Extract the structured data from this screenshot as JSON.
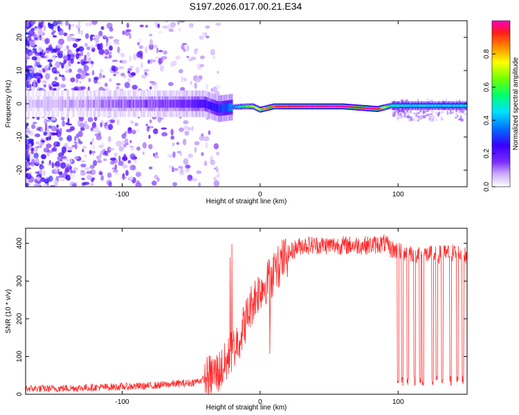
{
  "title": "S197.2026.017.00.21.E34",
  "chart_data": [
    {
      "type": "heatmap",
      "xlabel": "Height of straight line (km)",
      "ylabel": "Frequency (Hz)",
      "xlim": [
        -170,
        150
      ],
      "ylim": [
        -25,
        25
      ],
      "xticks": [
        -100,
        0,
        100
      ],
      "yticks": [
        -20,
        -10,
        0,
        10,
        20
      ],
      "colorbar": {
        "label": "Normalized spectral amplitude",
        "range": [
          0,
          1
        ],
        "ticks": [
          0.0,
          0.2,
          0.4,
          0.6,
          0.8
        ]
      },
      "band_profile": {
        "x": [
          -170,
          -130,
          -100,
          -60,
          -40,
          -30,
          -20,
          -10,
          -5,
          0,
          10,
          30,
          60,
          85,
          95,
          110,
          150
        ],
        "freq": [
          0,
          0,
          0,
          0,
          0,
          -1.5,
          -1,
          -0.8,
          -0.8,
          -1.8,
          -0.8,
          -0.8,
          -0.8,
          -1.6,
          -0.6,
          -0.6,
          -0.6
        ],
        "amplitude": [
          0.05,
          0.08,
          0.12,
          0.15,
          0.22,
          0.28,
          0.35,
          0.6,
          0.7,
          0.8,
          0.9,
          0.98,
          0.98,
          0.97,
          0.5,
          0.45,
          0.45
        ]
      }
    },
    {
      "type": "line",
      "xlabel": "Height of straight line (km)",
      "ylabel": "SNR (10 * v/v)",
      "xlim": [
        -170,
        150
      ],
      "ylim": [
        0,
        440
      ],
      "xticks": [
        -100,
        0,
        100
      ],
      "yticks": [
        0,
        100,
        200,
        300,
        400
      ],
      "color": "#ff2a2a",
      "series": [
        {
          "name": "SNR",
          "x": [
            -170,
            -150,
            -120,
            -100,
            -80,
            -60,
            -50,
            -40,
            -30,
            -25,
            -20,
            -15,
            -10,
            -5,
            0,
            5,
            10,
            15,
            20,
            25,
            30,
            40,
            60,
            80,
            90,
            95,
            100,
            110,
            120,
            130,
            140,
            150
          ],
          "values": [
            15,
            15,
            18,
            20,
            22,
            28,
            30,
            40,
            60,
            80,
            120,
            150,
            200,
            250,
            280,
            300,
            320,
            350,
            370,
            385,
            395,
            395,
            395,
            395,
            400,
            385,
            380,
            375,
            370,
            370,
            375,
            370
          ]
        }
      ],
      "dropouts": [
        100,
        103,
        107,
        112,
        116,
        118,
        125,
        128,
        132,
        138,
        143,
        147
      ]
    }
  ]
}
